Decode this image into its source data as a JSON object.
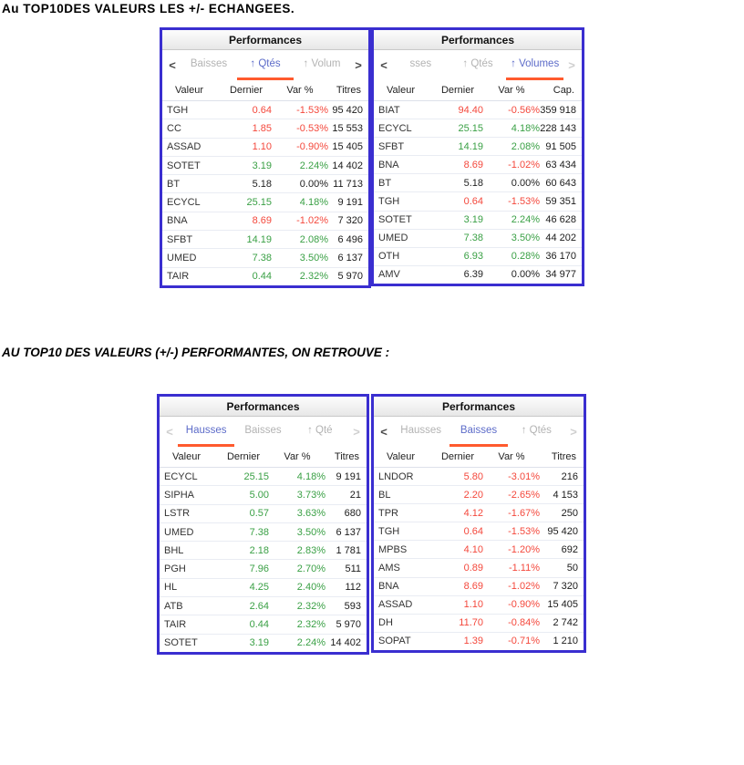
{
  "page": {
    "heading1": "Au TOP10DES VALEURS LES +/- ECHANGEES.",
    "heading2": "AU TOP10 DES VALEURS (+/-) PERFORMANTES, ON RETROUVE :"
  },
  "colors": {
    "positive": "#3aa045",
    "negative": "#f4483c",
    "neutral": "#222222",
    "tab_active": "#5d6cc9",
    "tab_underline": "#ff5a2e",
    "panel_border": "#3a2ed0"
  },
  "panels": [
    {
      "title": "Performances",
      "nav_left": "<",
      "nav_left_enabled": true,
      "nav_right": ">",
      "nav_right_enabled": true,
      "tabs": [
        {
          "label": "Baisses",
          "active": false
        },
        {
          "label": "↑ Qtés",
          "active": true
        },
        {
          "label": "↑ Volum",
          "active": false
        }
      ],
      "columns": [
        "Valeur",
        "Dernier",
        "Var %",
        "Titres"
      ],
      "rows": [
        {
          "name": "TGH",
          "last": "0.64",
          "var": "-1.53%",
          "qty": "95 420",
          "trend": "down"
        },
        {
          "name": "CC",
          "last": "1.85",
          "var": "-0.53%",
          "qty": "15 553",
          "trend": "down"
        },
        {
          "name": "ASSAD",
          "last": "1.10",
          "var": "-0.90%",
          "qty": "15 405",
          "trend": "down"
        },
        {
          "name": "SOTET",
          "last": "3.19",
          "var": "2.24%",
          "qty": "14 402",
          "trend": "up"
        },
        {
          "name": "BT",
          "last": "5.18",
          "var": "0.00%",
          "qty": "11 713",
          "trend": "flat"
        },
        {
          "name": "ECYCL",
          "last": "25.15",
          "var": "4.18%",
          "qty": "9 191",
          "trend": "up"
        },
        {
          "name": "BNA",
          "last": "8.69",
          "var": "-1.02%",
          "qty": "7 320",
          "trend": "down"
        },
        {
          "name": "SFBT",
          "last": "14.19",
          "var": "2.08%",
          "qty": "6 496",
          "trend": "up"
        },
        {
          "name": "UMED",
          "last": "7.38",
          "var": "3.50%",
          "qty": "6 137",
          "trend": "up"
        },
        {
          "name": "TAIR",
          "last": "0.44",
          "var": "2.32%",
          "qty": "5 970",
          "trend": "up"
        }
      ]
    },
    {
      "title": "Performances",
      "nav_left": "<",
      "nav_left_enabled": true,
      "nav_right": ">",
      "nav_right_enabled": false,
      "tabs": [
        {
          "label": "sses",
          "active": false
        },
        {
          "label": "↑ Qtés",
          "active": false
        },
        {
          "label": "↑ Volumes",
          "active": true
        }
      ],
      "columns": [
        "Valeur",
        "Dernier",
        "Var %",
        "Cap."
      ],
      "rows": [
        {
          "name": "BIAT",
          "last": "94.40",
          "var": "-0.56%",
          "qty": "359 918",
          "trend": "down"
        },
        {
          "name": "ECYCL",
          "last": "25.15",
          "var": "4.18%",
          "qty": "228 143",
          "trend": "up"
        },
        {
          "name": "SFBT",
          "last": "14.19",
          "var": "2.08%",
          "qty": "91 505",
          "trend": "up"
        },
        {
          "name": "BNA",
          "last": "8.69",
          "var": "-1.02%",
          "qty": "63 434",
          "trend": "down"
        },
        {
          "name": "BT",
          "last": "5.18",
          "var": "0.00%",
          "qty": "60 643",
          "trend": "flat"
        },
        {
          "name": "TGH",
          "last": "0.64",
          "var": "-1.53%",
          "qty": "59 351",
          "trend": "down"
        },
        {
          "name": "SOTET",
          "last": "3.19",
          "var": "2.24%",
          "qty": "46 628",
          "trend": "up"
        },
        {
          "name": "UMED",
          "last": "7.38",
          "var": "3.50%",
          "qty": "44 202",
          "trend": "up"
        },
        {
          "name": "OTH",
          "last": "6.93",
          "var": "0.28%",
          "qty": "36 170",
          "trend": "up"
        },
        {
          "name": "AMV",
          "last": "6.39",
          "var": "0.00%",
          "qty": "34 977",
          "trend": "flat"
        }
      ]
    },
    {
      "title": "Performances",
      "nav_left": "<",
      "nav_left_enabled": false,
      "nav_right": ">",
      "nav_right_enabled": false,
      "tabs": [
        {
          "label": "Hausses",
          "active": true
        },
        {
          "label": "Baisses",
          "active": false
        },
        {
          "label": "↑ Qté",
          "active": false
        }
      ],
      "columns": [
        "Valeur",
        "Dernier",
        "Var %",
        "Titres"
      ],
      "rows": [
        {
          "name": "ECYCL",
          "last": "25.15",
          "var": "4.18%",
          "qty": "9 191",
          "trend": "up"
        },
        {
          "name": "SIPHA",
          "last": "5.00",
          "var": "3.73%",
          "qty": "21",
          "trend": "up"
        },
        {
          "name": "LSTR",
          "last": "0.57",
          "var": "3.63%",
          "qty": "680",
          "trend": "up"
        },
        {
          "name": "UMED",
          "last": "7.38",
          "var": "3.50%",
          "qty": "6 137",
          "trend": "up"
        },
        {
          "name": "BHL",
          "last": "2.18",
          "var": "2.83%",
          "qty": "1 781",
          "trend": "up"
        },
        {
          "name": "PGH",
          "last": "7.96",
          "var": "2.70%",
          "qty": "511",
          "trend": "up"
        },
        {
          "name": "HL",
          "last": "4.25",
          "var": "2.40%",
          "qty": "112",
          "trend": "up"
        },
        {
          "name": "ATB",
          "last": "2.64",
          "var": "2.32%",
          "qty": "593",
          "trend": "up"
        },
        {
          "name": "TAIR",
          "last": "0.44",
          "var": "2.32%",
          "qty": "5 970",
          "trend": "up"
        },
        {
          "name": "SOTET",
          "last": "3.19",
          "var": "2.24%",
          "qty": "14 402",
          "trend": "up"
        }
      ]
    },
    {
      "title": "Performances",
      "nav_left": "<",
      "nav_left_enabled": true,
      "nav_right": ">",
      "nav_right_enabled": false,
      "tabs": [
        {
          "label": "Hausses",
          "active": false
        },
        {
          "label": "Baisses",
          "active": true
        },
        {
          "label": "↑ Qtés",
          "active": false
        }
      ],
      "columns": [
        "Valeur",
        "Dernier",
        "Var %",
        "Titres"
      ],
      "rows": [
        {
          "name": "LNDOR",
          "last": "5.80",
          "var": "-3.01%",
          "qty": "216",
          "trend": "down"
        },
        {
          "name": "BL",
          "last": "2.20",
          "var": "-2.65%",
          "qty": "4 153",
          "trend": "down"
        },
        {
          "name": "TPR",
          "last": "4.12",
          "var": "-1.67%",
          "qty": "250",
          "trend": "down"
        },
        {
          "name": "TGH",
          "last": "0.64",
          "var": "-1.53%",
          "qty": "95 420",
          "trend": "down"
        },
        {
          "name": "MPBS",
          "last": "4.10",
          "var": "-1.20%",
          "qty": "692",
          "trend": "down"
        },
        {
          "name": "AMS",
          "last": "0.89",
          "var": "-1.11%",
          "qty": "50",
          "trend": "down"
        },
        {
          "name": "BNA",
          "last": "8.69",
          "var": "-1.02%",
          "qty": "7 320",
          "trend": "down"
        },
        {
          "name": "ASSAD",
          "last": "1.10",
          "var": "-0.90%",
          "qty": "15 405",
          "trend": "down"
        },
        {
          "name": "DH",
          "last": "11.70",
          "var": "-0.84%",
          "qty": "2 742",
          "trend": "down"
        },
        {
          "name": "SOPAT",
          "last": "1.39",
          "var": "-0.71%",
          "qty": "1 210",
          "trend": "down"
        }
      ]
    }
  ]
}
